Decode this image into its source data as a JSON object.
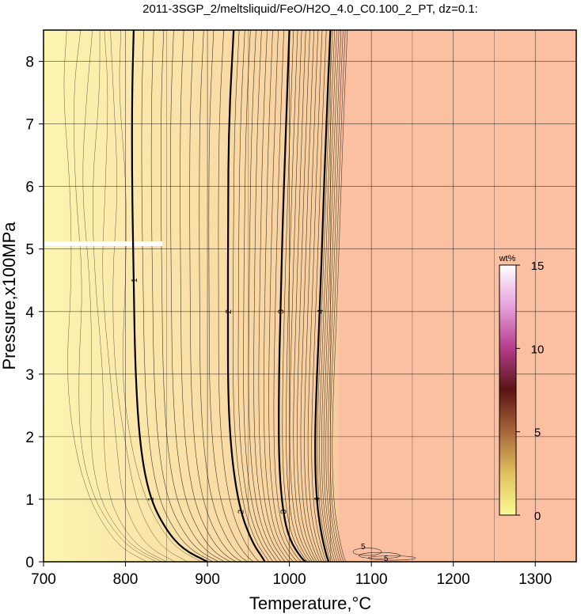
{
  "chart_data": {
    "type": "heatmap",
    "title": "2011-3SGP_2/meltsliquid/FeO/H2O_4.0_C0.100_2_PT, dz=0.1:",
    "xlabel": "Temperature,°C",
    "ylabel": "Pressure,x100MPa",
    "xlim": [
      700,
      1350
    ],
    "ylim": [
      0,
      8.5
    ],
    "x_ticks": [
      700,
      800,
      900,
      1000,
      1100,
      1200,
      1300
    ],
    "y_ticks": [
      0,
      1,
      2,
      3,
      4,
      5,
      6,
      7,
      8
    ],
    "grid": true,
    "colorbar": {
      "unit": "wt%",
      "min": 0,
      "max": 15,
      "ticks": [
        0,
        5,
        10,
        15
      ],
      "placement": "right-inside"
    },
    "contour_interval": 0.1,
    "labeled_contours": [
      {
        "level": 1,
        "label": "1",
        "points": [
          [
            810,
            8.5
          ],
          [
            808,
            7.5
          ],
          [
            808,
            6.0
          ],
          [
            810,
            4.5
          ],
          [
            812,
            3.0
          ],
          [
            818,
            1.8
          ],
          [
            830,
            1.0
          ],
          [
            850,
            0.5
          ],
          [
            870,
            0.2
          ],
          [
            900,
            0
          ]
        ]
      },
      {
        "level": 2,
        "label": "2",
        "points": [
          [
            932,
            8.5
          ],
          [
            926,
            7.0
          ],
          [
            925,
            5.5
          ],
          [
            925,
            4.0
          ],
          [
            925,
            2.6
          ],
          [
            930,
            1.6
          ],
          [
            940,
            0.8
          ],
          [
            955,
            0.3
          ],
          [
            968,
            0.05
          ],
          [
            970,
            0
          ]
        ]
      },
      {
        "level": 3,
        "label": "3",
        "points": [
          [
            1000,
            8.5
          ],
          [
            996,
            7.0
          ],
          [
            992,
            5.5
          ],
          [
            989,
            4.0
          ],
          [
            987,
            2.8
          ],
          [
            987,
            1.6
          ],
          [
            992,
            0.8
          ],
          [
            1000,
            0.35
          ],
          [
            1015,
            0.05
          ],
          [
            1020,
            0
          ]
        ]
      },
      {
        "level": 4,
        "label": "4",
        "points": [
          [
            1050,
            8.5
          ],
          [
            1045,
            7.0
          ],
          [
            1041,
            5.5
          ],
          [
            1037,
            4.0
          ],
          [
            1033,
            2.8
          ],
          [
            1031,
            1.8
          ],
          [
            1033,
            1.0
          ],
          [
            1038,
            0.5
          ],
          [
            1045,
            0.1
          ],
          [
            1048,
            0
          ]
        ]
      }
    ],
    "contour_labels_small": [
      {
        "label": "5",
        "x": 1090,
        "y": 0.24
      },
      {
        "label": "5",
        "x": 1118,
        "y": 0.05
      }
    ],
    "background_regions": [
      {
        "from_x": 700,
        "to_x": 1060,
        "color_start": "#fcf5b0",
        "color_end": "#f8cb9e"
      },
      {
        "from_x": 1060,
        "to_x": 1350,
        "color": "#fbc0a2"
      }
    ],
    "colormap": [
      "#fafa96",
      "#e0c060",
      "#a8663a",
      "#5a1414",
      "#b43c8c",
      "#e6a0dc",
      "#ffffff"
    ]
  }
}
